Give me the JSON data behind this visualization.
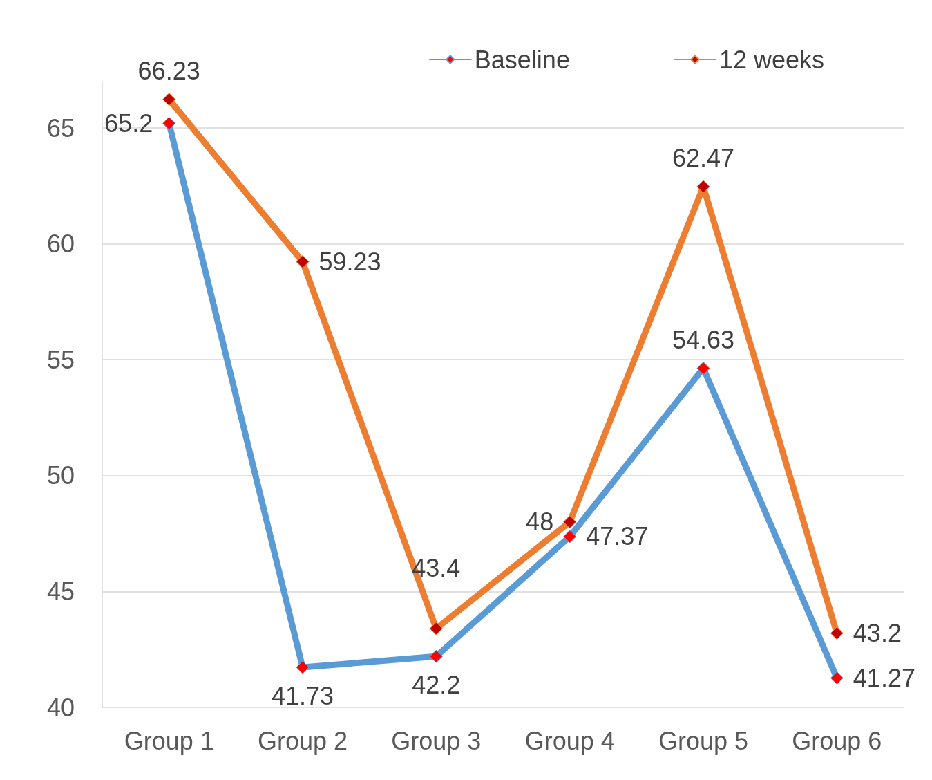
{
  "chart_data": {
    "type": "line",
    "categories": [
      "Group 1",
      "Group 2",
      "Group 3",
      "Group 4",
      "Group 5",
      "Group 6"
    ],
    "series": [
      {
        "name": "Baseline",
        "color": "#5b9bd5",
        "values": [
          65.2,
          41.73,
          42.2,
          47.37,
          54.63,
          41.27
        ]
      },
      {
        "name": "12 weeks",
        "color": "#ed7d31",
        "values": [
          66.23,
          59.23,
          43.4,
          48,
          62.47,
          43.2
        ]
      }
    ],
    "ylim": [
      40,
      67
    ],
    "yticks": [
      40,
      45,
      50,
      55,
      60,
      65
    ],
    "grid": "y",
    "legend": "top right",
    "marker": "diamond",
    "data_labels": true
  }
}
